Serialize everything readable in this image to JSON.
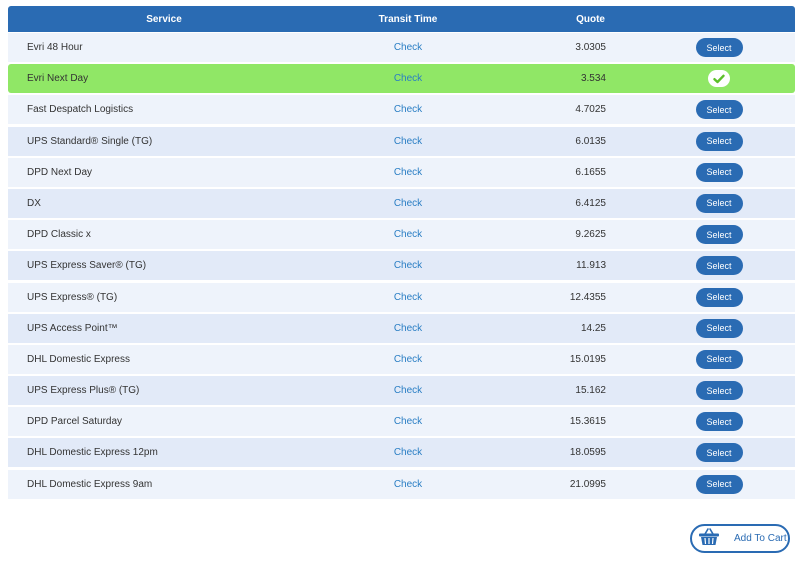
{
  "table": {
    "headers": {
      "service": "Service",
      "transit": "Transit Time",
      "quote": "Quote"
    },
    "rows": [
      {
        "service": "Evri 48 Hour",
        "transit": "Check",
        "quote": "3.0305",
        "action": "Select"
      },
      {
        "service": "Evri Next Day",
        "transit": "Check",
        "quote": "3.534",
        "action": "",
        "selected": true
      },
      {
        "service": "Fast Despatch Logistics",
        "transit": "Check",
        "quote": "4.7025",
        "action": "Select"
      },
      {
        "service": "UPS Standard® Single (TG)",
        "transit": "Check",
        "quote": "6.0135",
        "action": "Select"
      },
      {
        "service": "DPD Next Day",
        "transit": "Check",
        "quote": "6.1655",
        "action": "Select"
      },
      {
        "service": "DX",
        "transit": "Check",
        "quote": "6.4125",
        "action": "Select"
      },
      {
        "service": "DPD Classic x",
        "transit": "Check",
        "quote": "9.2625",
        "action": "Select"
      },
      {
        "service": "UPS Express Saver® (TG)",
        "transit": "Check",
        "quote": "11.913",
        "action": "Select"
      },
      {
        "service": "UPS Express® (TG)",
        "transit": "Check",
        "quote": "12.4355",
        "action": "Select"
      },
      {
        "service": "UPS Access Point™",
        "transit": "Check",
        "quote": "14.25",
        "action": "Select"
      },
      {
        "service": "DHL Domestic Express",
        "transit": "Check",
        "quote": "15.0195",
        "action": "Select"
      },
      {
        "service": "UPS Express Plus® (TG)",
        "transit": "Check",
        "quote": "15.162",
        "action": "Select"
      },
      {
        "service": "DPD Parcel Saturday",
        "transit": "Check",
        "quote": "15.3615",
        "action": "Select"
      },
      {
        "service": "DHL Domestic Express 12pm",
        "transit": "Check",
        "quote": "18.0595",
        "action": "Select"
      },
      {
        "service": "DHL Domestic Express 9am",
        "transit": "Check",
        "quote": "21.0995",
        "action": "Select"
      }
    ]
  },
  "cart": {
    "label": "Add To Cart",
    "icon": "basket-icon"
  },
  "colors": {
    "header": "#2a6bb3",
    "selected_row": "#90e766",
    "link": "#2a7ec4",
    "button": "#2a6bb3"
  }
}
